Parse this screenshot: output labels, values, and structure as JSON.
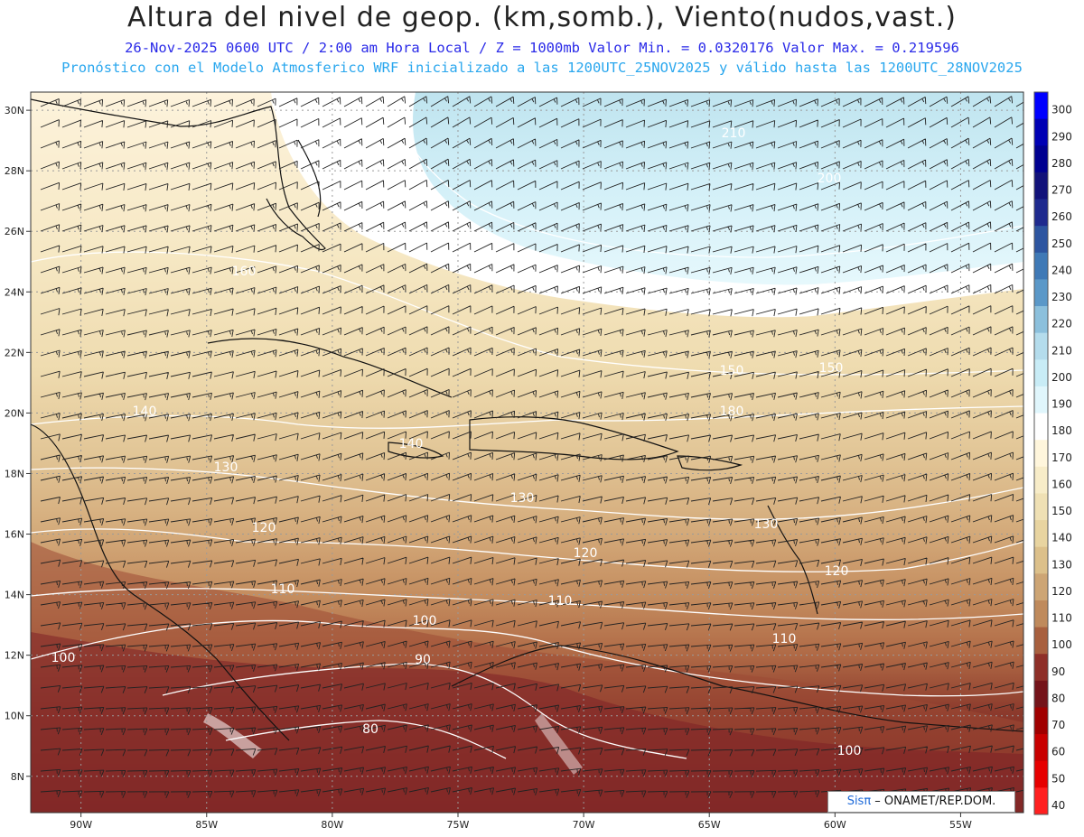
{
  "header": {
    "title": "Altura del nivel de geop. (km,somb.), Viento(nudos,vast.)",
    "subtitle": "26-Nov-2025  0600 UTC / 2:00 am Hora Local / Z = 1000mb  Valor Min. = 0.0320176  Valor Max. = 0.219596",
    "info": "Pronóstico con el Modelo Atmosferico WRF inicializado a las 1200UTC_25NOV2025 y válido hasta las  1200UTC_28NOV2025"
  },
  "axes": {
    "lat_labels": [
      "30N",
      "28N",
      "26N",
      "24N",
      "22N",
      "20N",
      "18N",
      "16N",
      "14N",
      "12N",
      "10N",
      "8N"
    ],
    "lon_labels": [
      "90W",
      "85W",
      "80W",
      "75W",
      "70W",
      "65W",
      "60W",
      "55W"
    ]
  },
  "colorbar": {
    "labels": [
      "300",
      "290",
      "280",
      "270",
      "260",
      "250",
      "240",
      "230",
      "220",
      "210",
      "200",
      "190",
      "180",
      "170",
      "160",
      "150",
      "140",
      "130",
      "120",
      "110",
      "100",
      "90",
      "80",
      "70",
      "60",
      "50",
      "40"
    ],
    "colors": [
      "#0000ff",
      "#0000b4",
      "#000090",
      "#12127a",
      "#1f2a8e",
      "#2d55a0",
      "#3f79b6",
      "#5b98c8",
      "#8cc0dc",
      "#b4dcec",
      "#c8ecf6",
      "#e0f6fc",
      "#ffffff",
      "#fff6dc",
      "#f7ecc8",
      "#efe0b4",
      "#e8d4a0",
      "#dcc08a",
      "#cda574",
      "#bf8a5c",
      "#a8603f",
      "#8e2f28",
      "#74141a",
      "#a00000",
      "#c80000",
      "#e60000",
      "#ff2020"
    ]
  },
  "contour_labels": [
    {
      "text": "210"
    },
    {
      "text": "200"
    },
    {
      "text": "180"
    },
    {
      "text": "160"
    },
    {
      "text": "150"
    },
    {
      "text": "150"
    },
    {
      "text": "140"
    },
    {
      "text": "140"
    },
    {
      "text": "130"
    },
    {
      "text": "130"
    },
    {
      "text": "130"
    },
    {
      "text": "120"
    },
    {
      "text": "120"
    },
    {
      "text": "120"
    },
    {
      "text": "110"
    },
    {
      "text": "110"
    },
    {
      "text": "110"
    },
    {
      "text": "100"
    },
    {
      "text": "100"
    },
    {
      "text": "100"
    },
    {
      "text": "90"
    },
    {
      "text": "80"
    }
  ],
  "credit": {
    "brand": "Sisπ",
    "text": " – ONAMET/REP.DOM."
  }
}
